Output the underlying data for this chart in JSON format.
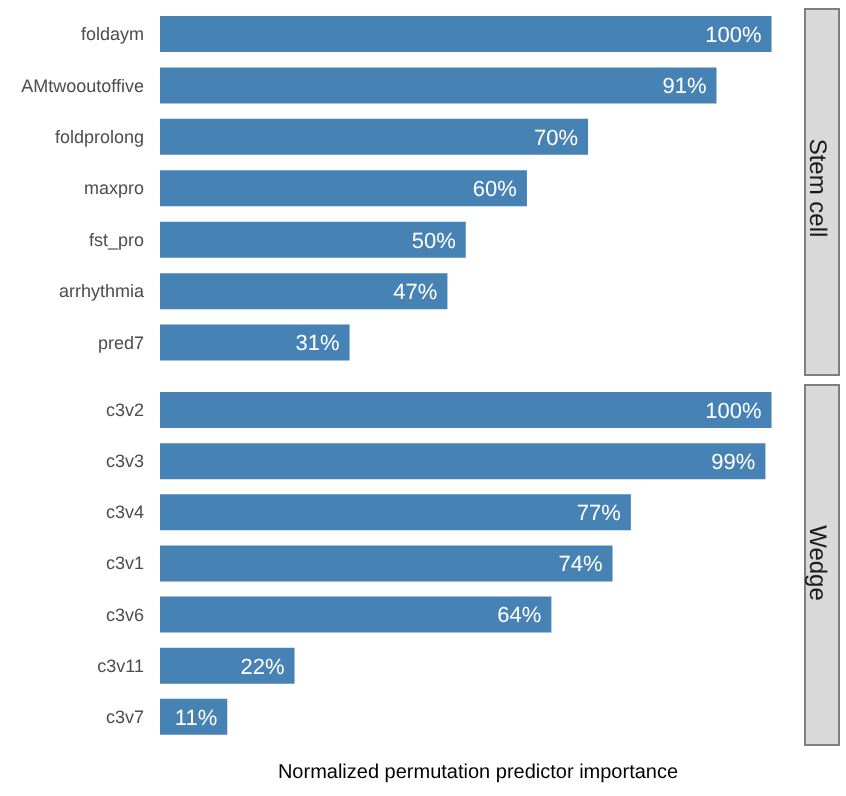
{
  "chart_data": [
    {
      "type": "bar",
      "orientation": "horizontal",
      "y2label": "Stem cell",
      "categories": [
        "foldaym",
        "AMtwooutoffive",
        "foldprolong",
        "maxpro",
        "fst_pro",
        "arrhythmia",
        "pred7"
      ],
      "values": [
        100,
        91,
        70,
        60,
        50,
        47,
        31
      ],
      "value_labels": [
        "100%",
        "91%",
        "70%",
        "60%",
        "50%",
        "47%",
        "31%"
      ],
      "color": "#4682b4",
      "tick_labels": "y"
    },
    {
      "type": "bar",
      "orientation": "horizontal",
      "y2label": "Wedge",
      "xlabel": "Normalized permutation predictor importance",
      "categories": [
        "c3v2",
        "c3v3",
        "c3v4",
        "c3v1",
        "c3v6",
        "c3v11",
        "c3v7"
      ],
      "values": [
        100,
        99,
        77,
        74,
        64,
        22,
        11
      ],
      "value_labels": [
        "100%",
        "99%",
        "77%",
        "74%",
        "64%",
        "22%",
        "11%"
      ],
      "color": "#4682b4",
      "tick_labels": "y"
    }
  ]
}
